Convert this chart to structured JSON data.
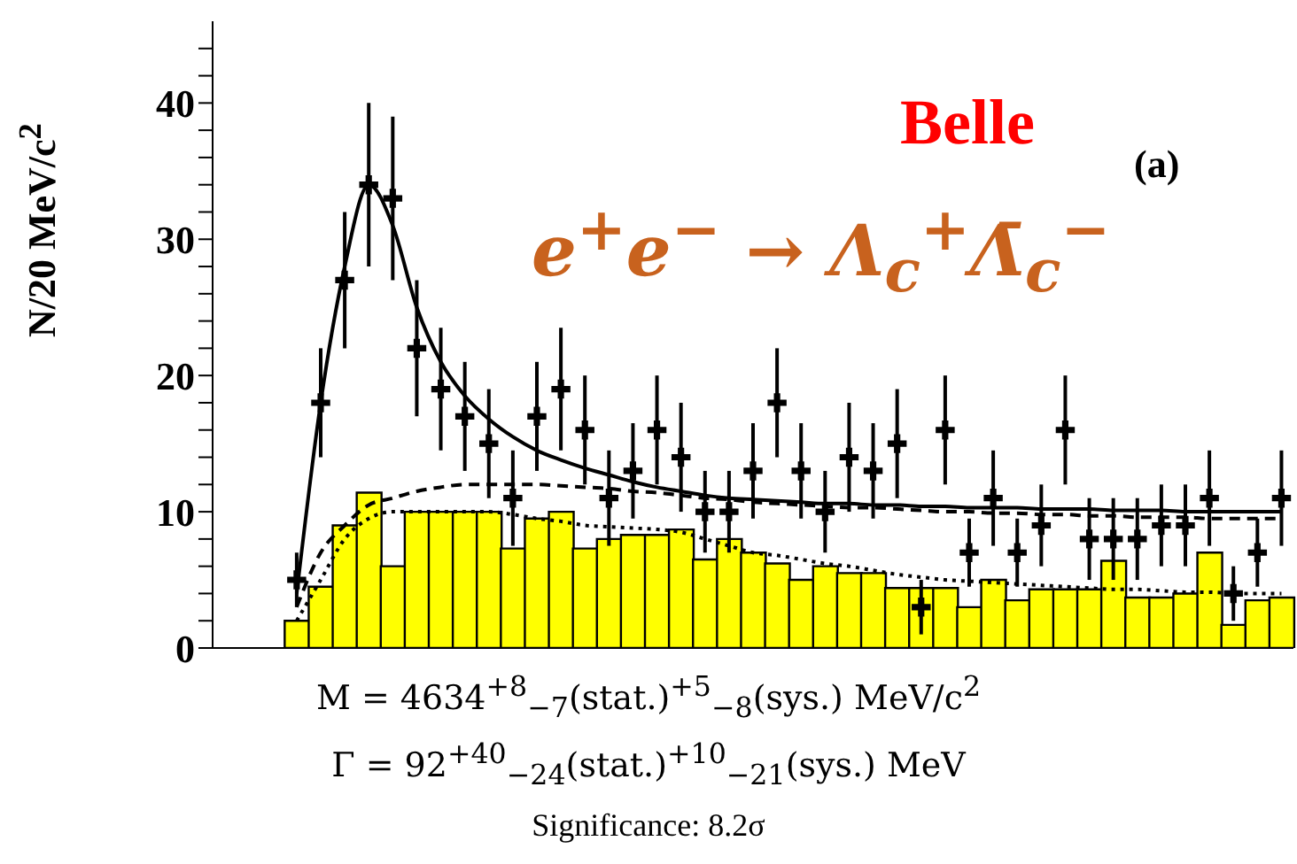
{
  "chart_data": {
    "type": "bar",
    "categories": [
      null,
      null,
      null,
      null,
      null,
      null,
      null,
      null,
      null,
      null,
      null,
      null,
      null,
      null,
      null,
      null,
      null,
      null,
      null,
      null,
      null,
      null,
      null,
      null,
      null,
      null,
      null,
      null,
      null,
      null,
      null,
      null,
      null,
      null,
      null,
      null,
      null,
      null,
      null,
      null,
      null,
      null,
      null,
      null,
      null
    ],
    "ylabel": "N/20 MeV/c$^{2}$",
    "ylim": [
      0,
      46
    ],
    "yticks": [
      0,
      {
        "value": 2,
        "label": null
      },
      {
        "value": 4,
        "label": null
      },
      {
        "value": 6,
        "label": null
      },
      {
        "value": 8,
        "label": null
      },
      10,
      {
        "value": 12,
        "label": null
      },
      {
        "value": 14,
        "label": null
      },
      {
        "value": 16,
        "label": null
      },
      {
        "value": 18,
        "label": null
      },
      20,
      {
        "value": 22,
        "label": null
      },
      {
        "value": 24,
        "label": null
      },
      {
        "value": 26,
        "label": null
      },
      {
        "value": 28,
        "label": null
      },
      30,
      {
        "value": 32,
        "label": null
      },
      {
        "value": 34,
        "label": null
      },
      {
        "value": 36,
        "label": null
      },
      {
        "value": 38,
        "label": null
      },
      40,
      {
        "value": 42,
        "label": null
      },
      {
        "value": 44,
        "label": null
      }
    ],
    "tick_labels": "y",
    "grid": false,
    "legend": false,
    "annotations": [
      "Belle",
      "(a)",
      "e$^{+}$e$^{−}$ → Λ$_{c}$$^{+}$Λ̄$_{c}$$^{−}$",
      "M = 4634$^{+8}$$_{−7}$(stat.)$^{+5}$$_{−8}$(sys.) MeV/c$^{2}$",
      "Γ = 92$^{+40}$$_{−24}$(stat.)$^{+10}$$_{−21}$(sys.) MeV",
      "Significance: 8.2σ"
    ],
    "series": [
      {
        "color": "#ffff00",
        "values": [
          0,
          0,
          0,
          2,
          4.5,
          9,
          11.4,
          6,
          10,
          10,
          10,
          10,
          7.3,
          9.5,
          10,
          7.3,
          8,
          8.3,
          8.3,
          8.7,
          6.5,
          8,
          7,
          6.2,
          5,
          6,
          5.5,
          5.5,
          4.4,
          4.4,
          4.4,
          3,
          5,
          3.5,
          4.3,
          4.3,
          4.3,
          6.4,
          3.7,
          3.7,
          4,
          7,
          1.7,
          3.5,
          3.7
        ]
      },
      {
        "type": "scatter",
        "color": "#000000",
        "marker": "cross",
        "values": [
          null,
          null,
          null,
          5,
          18,
          27,
          34,
          33,
          22,
          19,
          17,
          15,
          11,
          17,
          19,
          16,
          11,
          13,
          16,
          14,
          10,
          10,
          13,
          18,
          13,
          10,
          14,
          13,
          15,
          3,
          16,
          7,
          11,
          7,
          9,
          16,
          8,
          8,
          8,
          9,
          9,
          11,
          4,
          7,
          11
        ],
        "errors": [
          null,
          null,
          null,
          2,
          4,
          5,
          6,
          6,
          5,
          4.5,
          4,
          4,
          3.5,
          4,
          4.5,
          4,
          3.5,
          3.5,
          4,
          4,
          3,
          3,
          3.5,
          4,
          3.5,
          3,
          4,
          3.5,
          4,
          2,
          4,
          2.5,
          3.5,
          2.5,
          3,
          4,
          3,
          3,
          3,
          3,
          3,
          3.5,
          2,
          2.5,
          3.5
        ]
      },
      {
        "type": "line",
        "color": "#000000",
        "line_style": "solid",
        "values": [
          null,
          null,
          null,
          4,
          18,
          28,
          34,
          31,
          25,
          21,
          18.5,
          16.8,
          15.5,
          14.5,
          13.8,
          13.2,
          12.7,
          12.2,
          11.8,
          11.5,
          11.2,
          11,
          10.9,
          10.8,
          10.7,
          10.6,
          10.6,
          10.5,
          10.5,
          10.4,
          10.4,
          10.3,
          10.3,
          10.3,
          10.2,
          10.2,
          10.2,
          10.1,
          10.1,
          10.1,
          10,
          10,
          10,
          10,
          10
        ]
      },
      {
        "type": "line",
        "color": "#000000",
        "line_style": "dashed",
        "values": [
          null,
          null,
          null,
          3,
          7,
          9,
          10.5,
          11,
          11.5,
          11.8,
          12,
          12,
          12,
          12,
          11.9,
          11.8,
          11.7,
          11.5,
          11.4,
          11.2,
          11,
          10.9,
          10.7,
          10.6,
          10.5,
          10.4,
          10.3,
          10.3,
          10.2,
          10.1,
          10,
          10,
          9.9,
          9.9,
          9.8,
          9.8,
          9.7,
          9.7,
          9.6,
          9.6,
          9.6,
          9.5,
          9.5,
          9.5,
          9.5
        ]
      },
      {
        "type": "line",
        "color": "#000000",
        "line_style": "dotted",
        "values": [
          null,
          null,
          null,
          2,
          5,
          8,
          9.5,
          10,
          10,
          10,
          10,
          10,
          9.8,
          9.5,
          9.3,
          9,
          8.9,
          8.8,
          8.7,
          8.5,
          8,
          7.5,
          7,
          6.8,
          6.5,
          6.2,
          6,
          5.7,
          5.4,
          5.2,
          5,
          4.9,
          4.8,
          4.7,
          4.6,
          4.5,
          4.4,
          4.3,
          4.3,
          4.2,
          4.1,
          4.1,
          4,
          4,
          4
        ]
      }
    ]
  }
}
